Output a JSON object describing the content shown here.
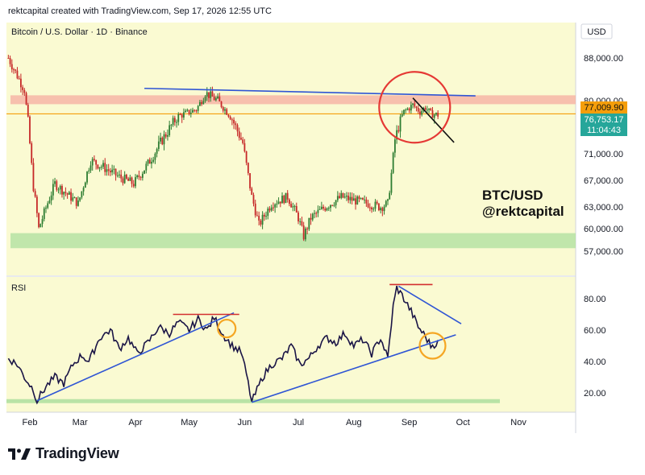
{
  "header": {
    "created_line": "rektcapital created with TradingView.com, Sep 17, 2026 12:55 UTC"
  },
  "footer": {
    "brand": "TradingView",
    "logo_icon": "tradingview-logo-icon"
  },
  "colors": {
    "background": "#fafad2",
    "candle_up": "#2e7d32",
    "candle_down": "#c62828",
    "rsi_line": "#1a1446",
    "trend_blue": "#2f55d4",
    "resistance_red": "#d32f2f",
    "support_green": "#b9e3a6",
    "resistance_zone": "#f6b9a8",
    "price_line": "#f59e0b",
    "circle_orange": "#f5a623"
  },
  "chart_data": [
    {
      "type": "candlestick",
      "title": "Bitcoin / U.S. Dollar · 1D · Binance",
      "currency": "USD",
      "xlabel": "",
      "ylabel": "",
      "x_ticks": [
        "Feb",
        "Mar",
        "Apr",
        "May",
        "Jun",
        "Jul",
        "Aug",
        "Sep",
        "Oct",
        "Nov"
      ],
      "y_ticks": [
        57000,
        60000,
        63000,
        67000,
        71000,
        76000,
        80000,
        88000
      ],
      "y_tick_labels": [
        "57,000.00",
        "60,000.00",
        "63,000.00",
        "67,000.00",
        "71,000.00",
        "76,000.00",
        "80,000.00",
        "88,000.00"
      ],
      "current_price": {
        "value": 76753.17,
        "label": "76,753.17",
        "countdown": "11:04:43"
      },
      "reference_level": {
        "value": 77009.9,
        "label": "77,009.90"
      },
      "approx_closes": [
        {
          "date": "Jan 20",
          "close": 88000
        },
        {
          "date": "Jan 29",
          "close": 82000
        },
        {
          "date": "Feb 3",
          "close": 66000
        },
        {
          "date": "Feb 6",
          "close": 60000
        },
        {
          "date": "Feb 15",
          "close": 66500
        },
        {
          "date": "Feb 28",
          "close": 63500
        },
        {
          "date": "Mar 7",
          "close": 70000
        },
        {
          "date": "Mar 14",
          "close": 69000
        },
        {
          "date": "Mar 23",
          "close": 67500
        },
        {
          "date": "Mar 31",
          "close": 66500
        },
        {
          "date": "Apr 8",
          "close": 69500
        },
        {
          "date": "Apr 16",
          "close": 73000
        },
        {
          "date": "Apr 25",
          "close": 76500
        },
        {
          "date": "May 5",
          "close": 78000
        },
        {
          "date": "May 10",
          "close": 81500
        },
        {
          "date": "May 17",
          "close": 80000
        },
        {
          "date": "May 24",
          "close": 76500
        },
        {
          "date": "May 31",
          "close": 72500
        },
        {
          "date": "Jun 5",
          "close": 64500
        },
        {
          "date": "Jun 9",
          "close": 60500
        },
        {
          "date": "Jun 16",
          "close": 63500
        },
        {
          "date": "Jun 25",
          "close": 64500
        },
        {
          "date": "Jul 1",
          "close": 61500
        },
        {
          "date": "Jul 4",
          "close": 59000
        },
        {
          "date": "Jul 8",
          "close": 61500
        },
        {
          "date": "Jul 16",
          "close": 63000
        },
        {
          "date": "Jul 25",
          "close": 64500
        },
        {
          "date": "Aug 1",
          "close": 64000
        },
        {
          "date": "Aug 9",
          "close": 63500
        },
        {
          "date": "Aug 16",
          "close": 63000
        },
        {
          "date": "Aug 20",
          "close": 63500
        },
        {
          "date": "Aug 22",
          "close": 68000
        },
        {
          "date": "Aug 24",
          "close": 73000
        },
        {
          "date": "Aug 29",
          "close": 77500
        },
        {
          "date": "Sep 3",
          "close": 79000
        },
        {
          "date": "Sep 7",
          "close": 77500
        },
        {
          "date": "Sep 10",
          "close": 78500
        },
        {
          "date": "Sep 13",
          "close": 77000
        },
        {
          "date": "Sep 17",
          "close": 76753
        }
      ],
      "zones": [
        {
          "name": "resistance",
          "from": 79200,
          "to": 81000
        },
        {
          "name": "support",
          "from": 57400,
          "to": 59400
        }
      ],
      "trendlines": [
        {
          "kind": "resistance",
          "from": {
            "date": "Apr 6",
            "price": 82300
          },
          "to": {
            "date": "Oct 8",
            "price": 80900
          }
        },
        {
          "kind": "downtrend",
          "from": {
            "date": "Sep 3",
            "price": 80500
          },
          "to": {
            "date": "Sep 26",
            "price": 72600
          }
        }
      ],
      "annotations": [
        "BTC/USD",
        "@rektcapital"
      ]
    },
    {
      "type": "line",
      "title": "RSI",
      "y_ticks": [
        20,
        40,
        60,
        80
      ],
      "y_tick_labels": [
        "20.00",
        "40.00",
        "60.00",
        "80.00"
      ],
      "series": [
        {
          "name": "RSI",
          "points": [
            {
              "date": "Jan 20",
              "value": 42
            },
            {
              "date": "Jan 25",
              "value": 38
            },
            {
              "date": "Jan 29",
              "value": 30
            },
            {
              "date": "Feb 3",
              "value": 22
            },
            {
              "date": "Feb 5",
              "value": 15
            },
            {
              "date": "Feb 10",
              "value": 24
            },
            {
              "date": "Feb 15",
              "value": 30
            },
            {
              "date": "Feb 20",
              "value": 26
            },
            {
              "date": "Feb 25",
              "value": 38
            },
            {
              "date": "Mar 2",
              "value": 44
            },
            {
              "date": "Mar 6",
              "value": 40
            },
            {
              "date": "Mar 12",
              "value": 55
            },
            {
              "date": "Mar 18",
              "value": 60
            },
            {
              "date": "Mar 23",
              "value": 48
            },
            {
              "date": "Mar 28",
              "value": 55
            },
            {
              "date": "Apr 2",
              "value": 45
            },
            {
              "date": "Apr 8",
              "value": 52
            },
            {
              "date": "Apr 14",
              "value": 62
            },
            {
              "date": "Apr 20",
              "value": 58
            },
            {
              "date": "Apr 25",
              "value": 65
            },
            {
              "date": "May 1",
              "value": 60
            },
            {
              "date": "May 6",
              "value": 67
            },
            {
              "date": "May 11",
              "value": 60
            },
            {
              "date": "May 15",
              "value": 68
            },
            {
              "date": "May 20",
              "value": 57
            },
            {
              "date": "May 25",
              "value": 50
            },
            {
              "date": "May 30",
              "value": 46
            },
            {
              "date": "Jun 2",
              "value": 32
            },
            {
              "date": "Jun 5",
              "value": 14
            },
            {
              "date": "Jun 11",
              "value": 30
            },
            {
              "date": "Jun 16",
              "value": 38
            },
            {
              "date": "Jun 22",
              "value": 42
            },
            {
              "date": "Jun 27",
              "value": 50
            },
            {
              "date": "Jul 2",
              "value": 38
            },
            {
              "date": "Jul 7",
              "value": 42
            },
            {
              "date": "Jul 12",
              "value": 50
            },
            {
              "date": "Jul 17",
              "value": 55
            },
            {
              "date": "Jul 22",
              "value": 52
            },
            {
              "date": "Jul 27",
              "value": 58
            },
            {
              "date": "Aug 1",
              "value": 50
            },
            {
              "date": "Aug 6",
              "value": 54
            },
            {
              "date": "Aug 11",
              "value": 45
            },
            {
              "date": "Aug 16",
              "value": 55
            },
            {
              "date": "Aug 20",
              "value": 42
            },
            {
              "date": "Aug 23",
              "value": 75
            },
            {
              "date": "Aug 25",
              "value": 87
            },
            {
              "date": "Aug 28",
              "value": 82
            },
            {
              "date": "Sep 2",
              "value": 72
            },
            {
              "date": "Sep 6",
              "value": 62
            },
            {
              "date": "Sep 10",
              "value": 56
            },
            {
              "date": "Sep 13",
              "value": 50
            },
            {
              "date": "Sep 17",
              "value": 52
            }
          ]
        }
      ],
      "zones": [
        {
          "name": "oversold",
          "value": 15
        }
      ],
      "trendlines": [
        {
          "kind": "support",
          "from": {
            "date": "Feb 5",
            "value": 15
          },
          "to": {
            "date": "May 26",
            "value": 71
          }
        },
        {
          "kind": "resistance",
          "from": {
            "date": "Apr 22",
            "value": 70
          },
          "to": {
            "date": "May 29",
            "value": 70
          }
        },
        {
          "kind": "support",
          "from": {
            "date": "Jun 5",
            "value": 14
          },
          "to": {
            "date": "Sep 27",
            "value": 57
          }
        },
        {
          "kind": "resistance",
          "from": {
            "date": "Aug 21",
            "value": 89
          },
          "to": {
            "date": "Sep 14",
            "value": 89
          }
        },
        {
          "kind": "downtrend",
          "from": {
            "date": "Aug 26",
            "value": 88
          },
          "to": {
            "date": "Sep 30",
            "value": 64
          }
        }
      ]
    }
  ]
}
